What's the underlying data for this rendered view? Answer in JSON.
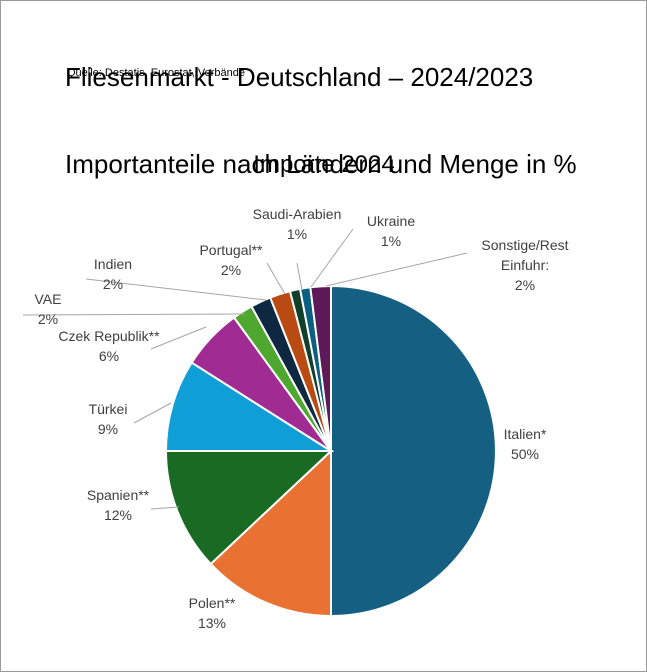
{
  "header": {
    "title_line1": "Fliesenmarkt - Deutschland – 2024/2023",
    "title_line2": "Importanteile nach Ländern und Menge in %",
    "source": "Quelle: Destatis, Eurostat, Verbände"
  },
  "chart_data": {
    "type": "pie",
    "title": "Importe 2024",
    "unit": "%",
    "start": "12 o'clock, clockwise",
    "slices": [
      {
        "name": "Italien*",
        "value": 50,
        "label": "50%",
        "color": "#156082"
      },
      {
        "name": "Polen**",
        "value": 13,
        "label": "13%",
        "color": "#e97132"
      },
      {
        "name": "Spanien**",
        "value": 12,
        "label": "12%",
        "color": "#196b24"
      },
      {
        "name": "Türkei",
        "value": 9,
        "label": "9%",
        "color": "#0f9ed5"
      },
      {
        "name": "Czek Republik**",
        "value": 6,
        "label": "6%",
        "color": "#a02b93"
      },
      {
        "name": "VAE",
        "value": 2,
        "label": "2%",
        "color": "#4ea72e"
      },
      {
        "name": "Indien",
        "value": 2,
        "label": "2%",
        "color": "#0e2841"
      },
      {
        "name": "Portugal**",
        "value": 2,
        "label": "2%",
        "color": "#b94a12"
      },
      {
        "name": "Saudi-Arabien",
        "value": 1,
        "label": "1%",
        "color": "#10402a"
      },
      {
        "name": "Ukraine",
        "value": 1,
        "label": "1%",
        "color": "#0b5f80"
      },
      {
        "name": "Sonstige/Rest Einfuhr:",
        "value": 2,
        "label": "2%",
        "color": "#5e1a58"
      }
    ]
  }
}
